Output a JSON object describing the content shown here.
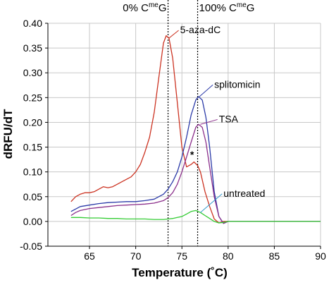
{
  "chart_data": {
    "type": "line",
    "title": "",
    "xlabel": "Temperature (˚C)",
    "ylabel": "dRFU/dT",
    "xlim": [
      60.5,
      90
    ],
    "ylim": [
      -0.05,
      0.4
    ],
    "xticks": [
      65,
      70,
      75,
      80,
      85,
      90
    ],
    "yticks": [
      -0.05,
      0.0,
      0.05,
      0.1,
      0.15,
      0.2,
      0.25,
      0.3,
      0.35,
      0.4
    ],
    "xtick_labels": [
      "65",
      "70",
      "75",
      "80",
      "85",
      "90"
    ],
    "ytick_labels": [
      "-0.05",
      "0.00",
      "0.05",
      "0.10",
      "0.15",
      "0.20",
      "0.25",
      "0.30",
      "0.35",
      "0.40"
    ],
    "grid": true,
    "reference_lines": [
      {
        "x": 73.5,
        "label_base": "0% C",
        "label_sup": "me",
        "label_tail": "G"
      },
      {
        "x": 76.7,
        "label_base": "100% C",
        "label_sup": "me",
        "label_tail": "G"
      }
    ],
    "series": [
      {
        "name": "5-aza-dC",
        "color": "#cc3322",
        "x": [
          63,
          63.5,
          64,
          64.5,
          65,
          65.5,
          66,
          66.5,
          67,
          67.5,
          68,
          68.5,
          69,
          69.5,
          70,
          70.5,
          71,
          71.5,
          72,
          72.5,
          73,
          73.3,
          73.6,
          74,
          74.5,
          75,
          75.5,
          76,
          76.3,
          76.7,
          77,
          77.5,
          78,
          78.5,
          79,
          79.5,
          80,
          81,
          82,
          83,
          84,
          85,
          86,
          87,
          88,
          89,
          90
        ],
        "y": [
          0.04,
          0.05,
          0.055,
          0.058,
          0.058,
          0.06,
          0.065,
          0.07,
          0.068,
          0.07,
          0.075,
          0.08,
          0.085,
          0.09,
          0.1,
          0.115,
          0.14,
          0.17,
          0.22,
          0.29,
          0.36,
          0.375,
          0.37,
          0.33,
          0.24,
          0.15,
          0.11,
          0.115,
          0.12,
          0.113,
          0.1,
          0.06,
          0.03,
          0.005,
          -0.003,
          0.0,
          0.0,
          0.0,
          0.0,
          0.0,
          0.0,
          0.0,
          0.0,
          0.0,
          0.0,
          0.0,
          0.0
        ]
      },
      {
        "name": "splitomicin",
        "color": "#2b3aa8",
        "x": [
          63,
          63.5,
          64,
          65,
          66,
          67,
          68,
          69,
          70,
          71,
          72,
          72.5,
          73,
          73.5,
          74,
          74.5,
          75,
          75.5,
          76,
          76.5,
          76.8,
          77.2,
          77.6,
          78,
          78.5,
          79,
          79.5,
          80,
          81,
          82,
          83,
          84,
          85,
          86,
          87,
          88,
          89,
          90
        ],
        "y": [
          0.02,
          0.025,
          0.03,
          0.033,
          0.036,
          0.038,
          0.039,
          0.04,
          0.04,
          0.042,
          0.045,
          0.05,
          0.055,
          0.065,
          0.08,
          0.1,
          0.13,
          0.17,
          0.215,
          0.245,
          0.252,
          0.245,
          0.21,
          0.15,
          0.06,
          0.01,
          -0.004,
          0.0,
          0.0,
          0.0,
          0.0,
          0.0,
          0.0,
          0.0,
          0.0,
          0.0,
          0.0,
          0.0
        ]
      },
      {
        "name": "TSA",
        "color": "#8b2f8b",
        "x": [
          63,
          63.5,
          64,
          65,
          66,
          67,
          68,
          69,
          70,
          71,
          72,
          73,
          73.5,
          74,
          74.5,
          75,
          75.5,
          76,
          76.5,
          76.8,
          77.2,
          77.6,
          78,
          78.5,
          79,
          79.5,
          80,
          81,
          82,
          83,
          84,
          85,
          86,
          87,
          88,
          89,
          90
        ],
        "y": [
          0.012,
          0.018,
          0.022,
          0.026,
          0.028,
          0.03,
          0.032,
          0.033,
          0.034,
          0.035,
          0.037,
          0.042,
          0.048,
          0.058,
          0.075,
          0.1,
          0.13,
          0.16,
          0.19,
          0.196,
          0.19,
          0.16,
          0.11,
          0.05,
          0.01,
          -0.004,
          0.0,
          0.0,
          0.0,
          0.0,
          0.0,
          0.0,
          0.0,
          0.0,
          0.0,
          0.0,
          0.0
        ]
      },
      {
        "name": "untreated",
        "color": "#33cc33",
        "x": [
          63,
          64,
          65,
          66,
          67,
          68,
          69,
          70,
          71,
          72,
          73,
          73.5,
          74,
          74.5,
          75,
          75.5,
          76,
          76.5,
          77,
          77.5,
          78,
          78.5,
          79,
          79.5,
          80,
          82,
          84,
          86,
          88,
          90
        ],
        "y": [
          0.008,
          0.008,
          0.007,
          0.007,
          0.006,
          0.006,
          0.005,
          0.005,
          0.005,
          0.004,
          0.004,
          0.005,
          0.006,
          0.008,
          0.01,
          0.015,
          0.02,
          0.022,
          0.018,
          0.012,
          0.006,
          0.0,
          -0.003,
          -0.002,
          0.0,
          0.0,
          0.0,
          0.0,
          0.0,
          0.0
        ]
      }
    ],
    "annotations": [
      {
        "text": "5-aza-dC",
        "series": "5-aza-dC",
        "color": "#cc3322",
        "text_x": 74.8,
        "text_y": 0.38,
        "point_x": 73.6,
        "point_y": 0.37
      },
      {
        "text": "splitomicin",
        "series": "splitomicin",
        "color": "#2b3aa8",
        "text_x": 78.5,
        "text_y": 0.27,
        "point_x": 76.9,
        "point_y": 0.252
      },
      {
        "text": "TSA",
        "series": "TSA",
        "color": "#8b2f8b",
        "text_x": 79.0,
        "text_y": 0.2,
        "point_x": 77.0,
        "point_y": 0.196
      },
      {
        "text": "untreated",
        "series": "untreated",
        "color": "#3399cc",
        "text_x": 79.5,
        "text_y": 0.05,
        "point_x": 77.0,
        "point_y": 0.018
      },
      {
        "text": "*",
        "series": "5-aza-dC",
        "color": "#000000",
        "text_x": 76.1,
        "text_y": 0.128,
        "point_x": null,
        "point_y": null
      }
    ]
  }
}
